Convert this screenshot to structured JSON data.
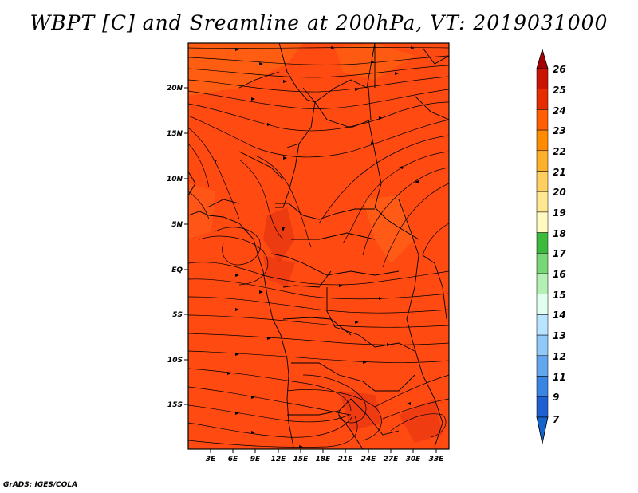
{
  "title": "WBPT [C] and Sreamline at 200hPa, VT: 2019031000",
  "credit": "GrADS: IGES/COLA",
  "map": {
    "lat_labels": [
      "20N",
      "15N",
      "10N",
      "5N",
      "EQ",
      "5S",
      "10S",
      "15S"
    ],
    "lon_labels": [
      "3E",
      "6E",
      "9E",
      "12E",
      "15E",
      "18E",
      "21E",
      "24E",
      "27E",
      "30E",
      "33E"
    ],
    "fill_color": "#ff4a12",
    "field": "WBPT",
    "overlay": "streamlines",
    "level": "200hPa"
  },
  "colorbar": {
    "labels": [
      "26",
      "25",
      "24",
      "23",
      "22",
      "21",
      "20",
      "19",
      "18",
      "17",
      "16",
      "15",
      "14",
      "13",
      "12",
      "11",
      "9",
      "7"
    ],
    "colors": [
      "#a50000",
      "#c81400",
      "#e62d00",
      "#ff5f00",
      "#ff8c00",
      "#ffb02a",
      "#ffd060",
      "#ffe890",
      "#fffac0",
      "#3cba3c",
      "#78d878",
      "#b4f0b4",
      "#e0fff0",
      "#b8e4ff",
      "#90c8f8",
      "#62a6f0",
      "#3a84e4",
      "#1e60d2",
      "#1464cc"
    ]
  }
}
